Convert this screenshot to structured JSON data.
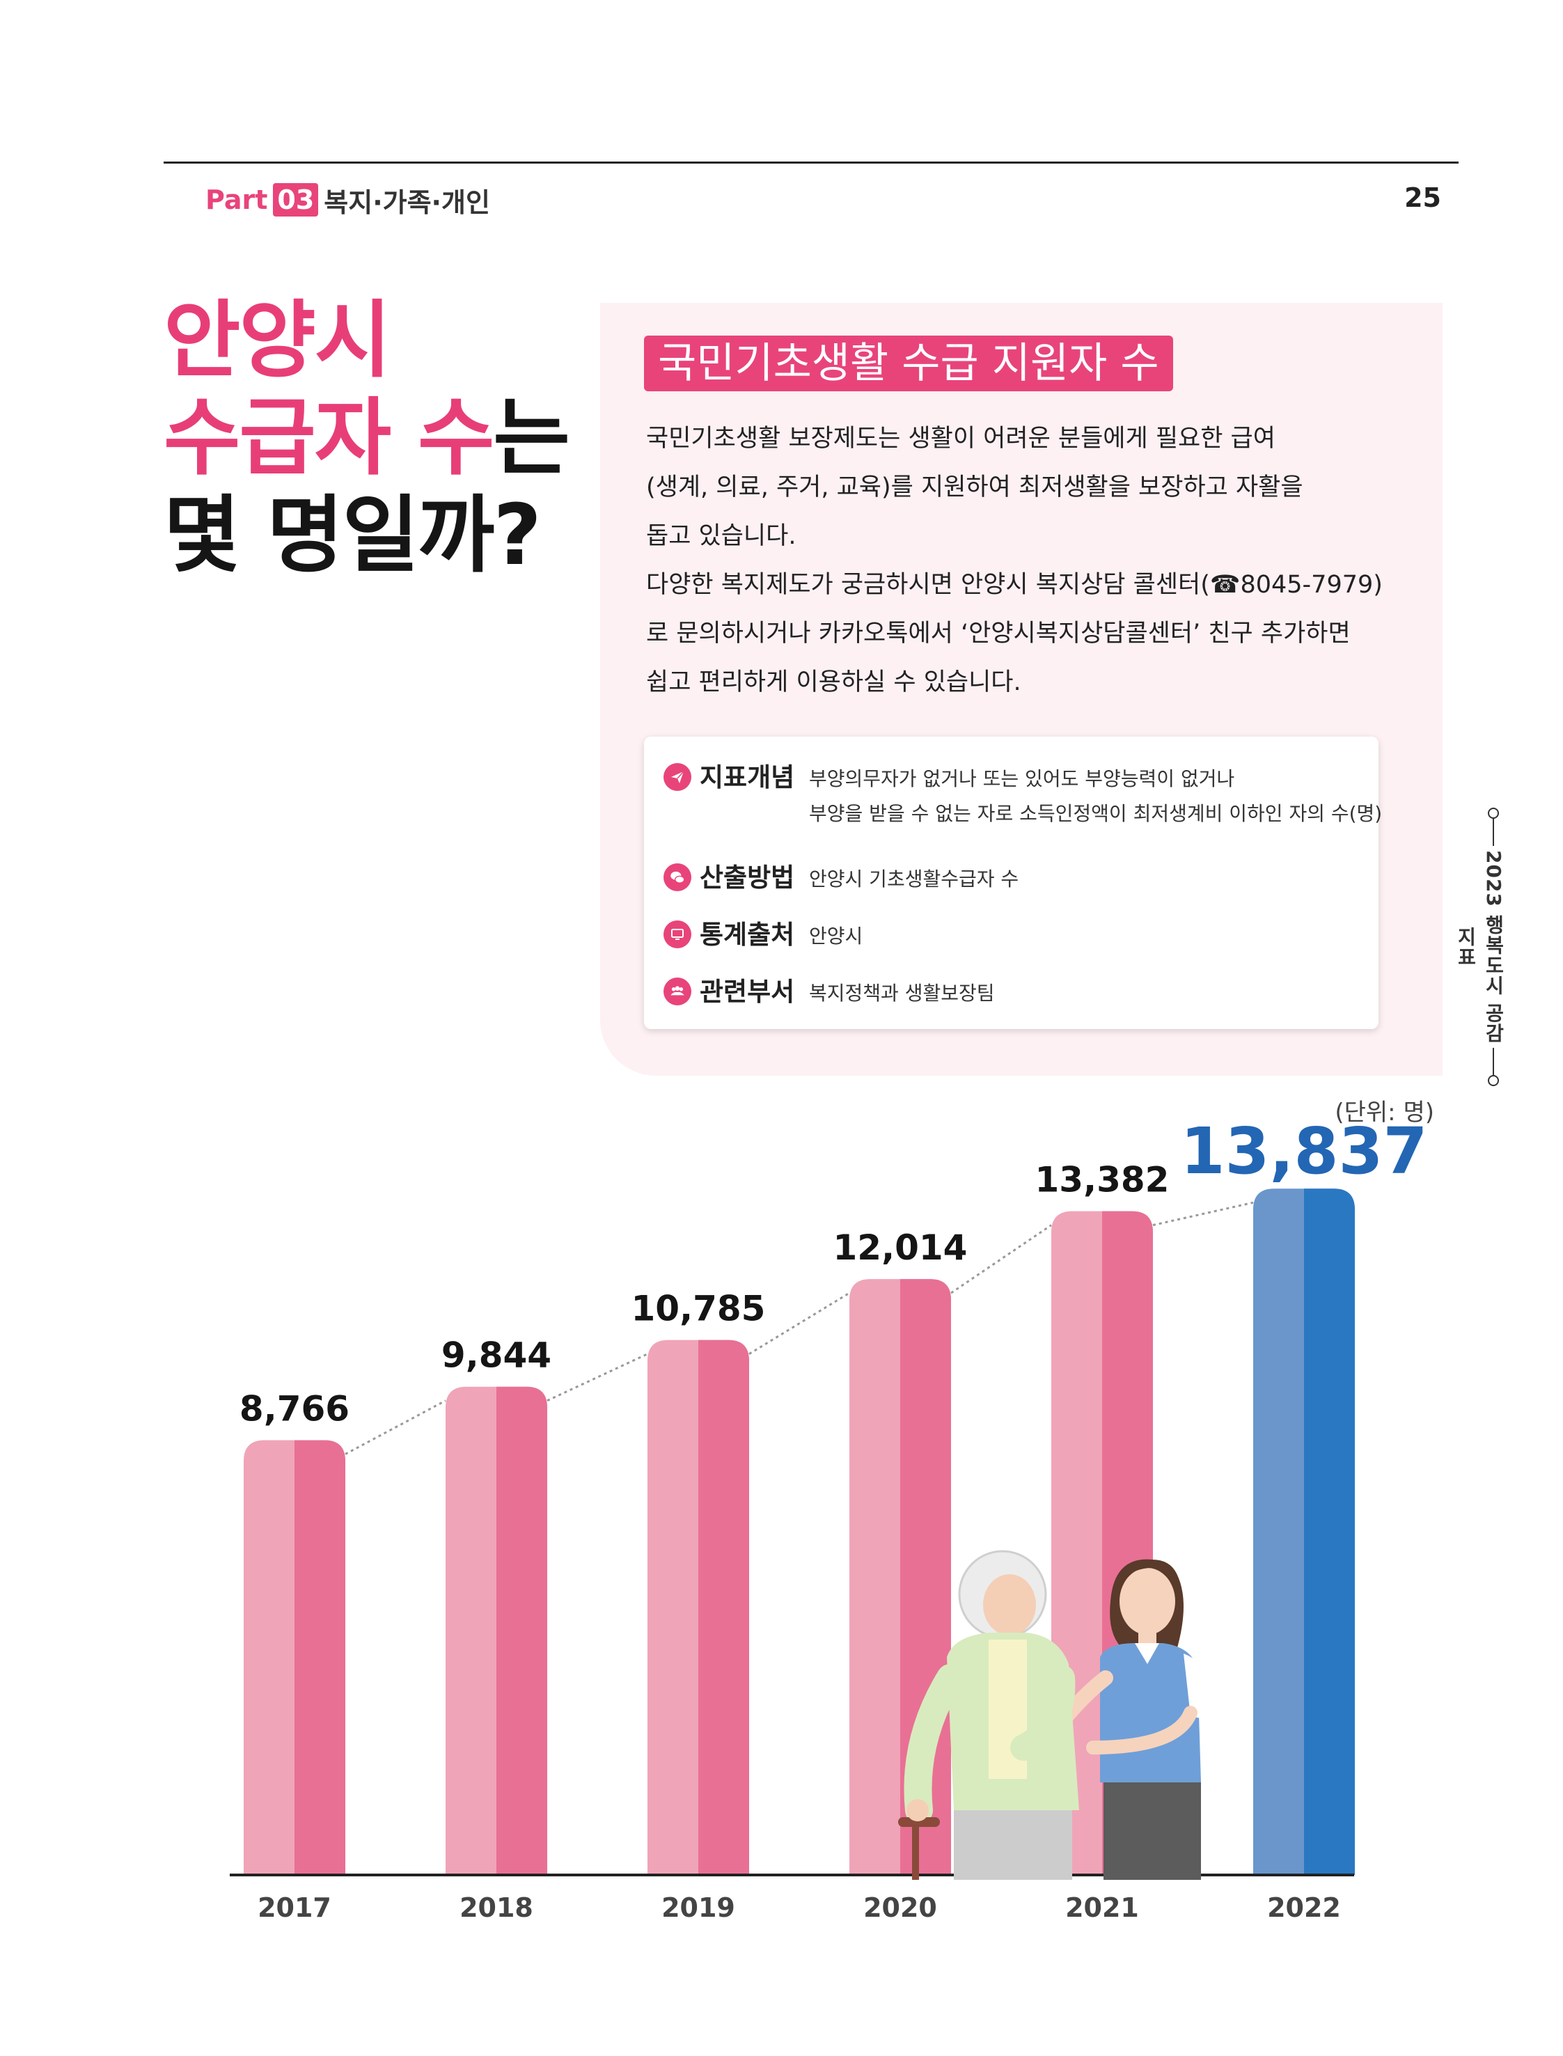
{
  "header": {
    "part_word": "Part",
    "part_number": "03",
    "part_title": "복지·가족·개인",
    "page_number": "25"
  },
  "headline": {
    "line1": "안양시",
    "line2_pink": "수급자 수",
    "line2_dark": "는",
    "line3": "몇 명일까?"
  },
  "section_title": "국민기초생활 수급 지원자 수",
  "description": [
    "국민기초생활 보장제도는 생활이 어려운 분들에게 필요한 급여",
    "(생계, 의료, 주거, 교육)를 지원하여 최저생활을 보장하고 자활을",
    "돕고 있습니다.",
    "다양한 복지제도가 궁금하시면 안양시 복지상담 콜센터(☎8045-7979)",
    "로 문의하시거나 카카오톡에서 ‘안양시복지상담콜센터’ 친구 추가하면",
    "쉽고 편리하게 이용하실 수 있습니다."
  ],
  "indicator": {
    "concept": {
      "label": "지표개념",
      "icon": "paper-plane-icon",
      "value_line1": "부양의무자가 없거나 또는 있어도 부양능력이 없거나",
      "value_line2": "부양을 받을 수 없는 자로 소득인정액이 최저생계비 이하인 자의 수(명)"
    },
    "method": {
      "label": "산출방법",
      "icon": "chat-bubble-icon",
      "value": "안양시 기초생활수급자 수"
    },
    "source": {
      "label": "통계출처",
      "icon": "monitor-icon",
      "value": "안양시"
    },
    "department": {
      "label": "관련부서",
      "icon": "people-icon",
      "value": "복지정책과 생활보장팀"
    }
  },
  "side_text": "2023 행복도시 공감지표",
  "unit_label": "(단위: 명)",
  "colors": {
    "accent_pink": "#e8447a",
    "bar_pink_light": "#f0a4b8",
    "bar_pink_dark": "#e87095",
    "bar_blue_light": "#6a96cc",
    "bar_blue_dark": "#2a78c2",
    "highlight_label": "#2366b4"
  },
  "chart_data": {
    "type": "bar",
    "categories": [
      "2017",
      "2018",
      "2019",
      "2020",
      "2021",
      "2022"
    ],
    "values": [
      8766,
      9844,
      10785,
      12014,
      13382,
      13837
    ],
    "value_labels": [
      "8,766",
      "9,844",
      "10,785",
      "12,014",
      "13,382",
      "13,837"
    ],
    "highlight_index": 5,
    "trend_line": "dotted",
    "ylim": [
      0,
      14500
    ],
    "title": "",
    "xlabel": "",
    "ylabel": ""
  }
}
